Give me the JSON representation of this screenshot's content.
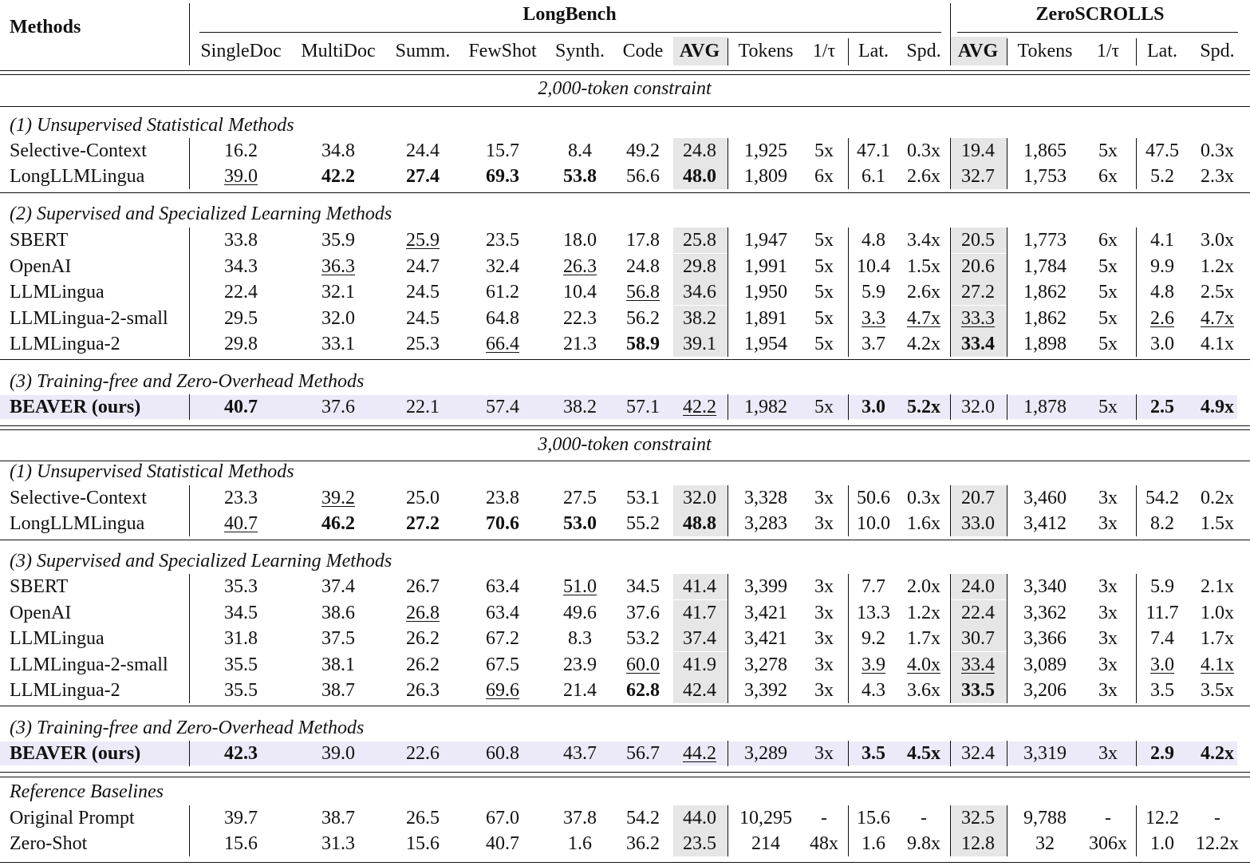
{
  "header": {
    "methods_label": "Methods",
    "groups": [
      "LongBench",
      "ZeroSCROLLS"
    ],
    "columns": [
      "SingleDoc",
      "MultiDoc",
      "Summ.",
      "FewShot",
      "Synth.",
      "Code",
      "AVG",
      "Tokens",
      "1/τ",
      "Lat.",
      "Spd.",
      "AVG",
      "Tokens",
      "1/τ",
      "Lat.",
      "Spd."
    ]
  },
  "sections": [
    {
      "constraint": "2,000-token constraint",
      "groups": [
        {
          "title": "(1) Unsupervised Statistical Methods",
          "rows": [
            {
              "method": "Selective-Context",
              "highlight": false,
              "bold_method": false,
              "values": [
                "16.2",
                "34.8",
                "24.4",
                "15.7",
                "8.4",
                "49.2",
                "24.8",
                "1,925",
                "5x",
                "47.1",
                "0.3x",
                "19.4",
                "1,865",
                "5x",
                "47.5",
                "0.3x"
              ],
              "bold": [],
              "underline": []
            },
            {
              "method": "LongLLMLingua",
              "highlight": false,
              "bold_method": false,
              "values": [
                "39.0",
                "42.2",
                "27.4",
                "69.3",
                "53.8",
                "56.6",
                "48.0",
                "1,809",
                "6x",
                "6.1",
                "2.6x",
                "32.7",
                "1,753",
                "6x",
                "5.2",
                "2.3x"
              ],
              "bold": [
                1,
                2,
                3,
                4,
                6
              ],
              "underline": [
                0
              ]
            }
          ]
        },
        {
          "title": "(2) Supervised and Specialized Learning Methods",
          "rows": [
            {
              "method": "SBERT",
              "highlight": false,
              "bold_method": false,
              "values": [
                "33.8",
                "35.9",
                "25.9",
                "23.5",
                "18.0",
                "17.8",
                "25.8",
                "1,947",
                "5x",
                "4.8",
                "3.4x",
                "20.5",
                "1,773",
                "6x",
                "4.1",
                "3.0x"
              ],
              "bold": [],
              "underline": [
                2
              ]
            },
            {
              "method": "OpenAI",
              "highlight": false,
              "bold_method": false,
              "values": [
                "34.3",
                "36.3",
                "24.7",
                "32.4",
                "26.3",
                "24.8",
                "29.8",
                "1,991",
                "5x",
                "10.4",
                "1.5x",
                "20.6",
                "1,784",
                "5x",
                "9.9",
                "1.2x"
              ],
              "bold": [],
              "underline": [
                1,
                4
              ]
            },
            {
              "method": "LLMLingua",
              "highlight": false,
              "bold_method": false,
              "values": [
                "22.4",
                "32.1",
                "24.5",
                "61.2",
                "10.4",
                "56.8",
                "34.6",
                "1,950",
                "5x",
                "5.9",
                "2.6x",
                "27.2",
                "1,862",
                "5x",
                "4.8",
                "2.5x"
              ],
              "bold": [],
              "underline": [
                5
              ]
            },
            {
              "method": "LLMLingua-2-small",
              "highlight": false,
              "bold_method": false,
              "values": [
                "29.5",
                "32.0",
                "24.5",
                "64.8",
                "22.3",
                "56.2",
                "38.2",
                "1,891",
                "5x",
                "3.3",
                "4.7x",
                "33.3",
                "1,862",
                "5x",
                "2.6",
                "4.7x"
              ],
              "bold": [],
              "underline": [
                9,
                10,
                11,
                14,
                15
              ]
            },
            {
              "method": "LLMLingua-2",
              "highlight": false,
              "bold_method": false,
              "values": [
                "29.8",
                "33.1",
                "25.3",
                "66.4",
                "21.3",
                "58.9",
                "39.1",
                "1,954",
                "5x",
                "3.7",
                "4.2x",
                "33.4",
                "1,898",
                "5x",
                "3.0",
                "4.1x"
              ],
              "bold": [
                5,
                11
              ],
              "underline": [
                3
              ]
            }
          ]
        },
        {
          "title": "(3) Training-free and Zero-Overhead Methods",
          "rows": [
            {
              "method": "BEAVER (ours)",
              "highlight": true,
              "bold_method": true,
              "values": [
                "40.7",
                "37.6",
                "22.1",
                "57.4",
                "38.2",
                "57.1",
                "42.2",
                "1,982",
                "5x",
                "3.0",
                "5.2x",
                "32.0",
                "1,878",
                "5x",
                "2.5",
                "4.9x"
              ],
              "bold": [
                0,
                9,
                10,
                14,
                15
              ],
              "underline": [
                6
              ]
            }
          ]
        }
      ]
    },
    {
      "constraint": "3,000-token constraint",
      "groups": [
        {
          "title": "(1) Unsupervised Statistical Methods",
          "rows": [
            {
              "method": "Selective-Context",
              "highlight": false,
              "bold_method": false,
              "values": [
                "23.3",
                "39.2",
                "25.0",
                "23.8",
                "27.5",
                "53.1",
                "32.0",
                "3,328",
                "3x",
                "50.6",
                "0.3x",
                "20.7",
                "3,460",
                "3x",
                "54.2",
                "0.2x"
              ],
              "bold": [],
              "underline": [
                1
              ]
            },
            {
              "method": "LongLLMLingua",
              "highlight": false,
              "bold_method": false,
              "values": [
                "40.7",
                "46.2",
                "27.2",
                "70.6",
                "53.0",
                "55.2",
                "48.8",
                "3,283",
                "3x",
                "10.0",
                "1.6x",
                "33.0",
                "3,412",
                "3x",
                "8.2",
                "1.5x"
              ],
              "bold": [
                1,
                2,
                3,
                4,
                6
              ],
              "underline": [
                0
              ]
            }
          ]
        },
        {
          "title": "(3) Supervised and Specialized Learning Methods",
          "rows": [
            {
              "method": "SBERT",
              "highlight": false,
              "bold_method": false,
              "values": [
                "35.3",
                "37.4",
                "26.7",
                "63.4",
                "51.0",
                "34.5",
                "41.4",
                "3,399",
                "3x",
                "7.7",
                "2.0x",
                "24.0",
                "3,340",
                "3x",
                "5.9",
                "2.1x"
              ],
              "bold": [],
              "underline": [
                4
              ]
            },
            {
              "method": "OpenAI",
              "highlight": false,
              "bold_method": false,
              "values": [
                "34.5",
                "38.6",
                "26.8",
                "63.4",
                "49.6",
                "37.6",
                "41.7",
                "3,421",
                "3x",
                "13.3",
                "1.2x",
                "22.4",
                "3,362",
                "3x",
                "11.7",
                "1.0x"
              ],
              "bold": [],
              "underline": [
                2
              ]
            },
            {
              "method": "LLMLingua",
              "highlight": false,
              "bold_method": false,
              "values": [
                "31.8",
                "37.5",
                "26.2",
                "67.2",
                "8.3",
                "53.2",
                "37.4",
                "3,421",
                "3x",
                "9.2",
                "1.7x",
                "30.7",
                "3,366",
                "3x",
                "7.4",
                "1.7x"
              ],
              "bold": [],
              "underline": []
            },
            {
              "method": "LLMLingua-2-small",
              "highlight": false,
              "bold_method": false,
              "values": [
                "35.5",
                "38.1",
                "26.2",
                "67.5",
                "23.9",
                "60.0",
                "41.9",
                "3,278",
                "3x",
                "3.9",
                "4.0x",
                "33.4",
                "3,089",
                "3x",
                "3.0",
                "4.1x"
              ],
              "bold": [],
              "underline": [
                5,
                9,
                10,
                11,
                14,
                15
              ]
            },
            {
              "method": "LLMLingua-2",
              "highlight": false,
              "bold_method": false,
              "values": [
                "35.5",
                "38.7",
                "26.3",
                "69.6",
                "21.4",
                "62.8",
                "42.4",
                "3,392",
                "3x",
                "4.3",
                "3.6x",
                "33.5",
                "3,206",
                "3x",
                "3.5",
                "3.5x"
              ],
              "bold": [
                5,
                11
              ],
              "underline": [
                3
              ]
            }
          ]
        },
        {
          "title": "(3) Training-free and Zero-Overhead Methods",
          "rows": [
            {
              "method": "BEAVER (ours)",
              "highlight": true,
              "bold_method": true,
              "values": [
                "42.3",
                "39.0",
                "22.6",
                "60.8",
                "43.7",
                "56.7",
                "44.2",
                "3,289",
                "3x",
                "3.5",
                "4.5x",
                "32.4",
                "3,319",
                "3x",
                "2.9",
                "4.2x"
              ],
              "bold": [
                0,
                9,
                10,
                14,
                15
              ],
              "underline": [
                6
              ]
            }
          ]
        }
      ]
    }
  ],
  "reference": {
    "title": "Reference Baselines",
    "rows": [
      {
        "method": "Original Prompt",
        "highlight": false,
        "bold_method": false,
        "values": [
          "39.7",
          "38.7",
          "26.5",
          "67.0",
          "37.8",
          "54.2",
          "44.0",
          "10,295",
          "-",
          "15.6",
          "-",
          "32.5",
          "9,788",
          "-",
          "12.2",
          "-"
        ],
        "bold": [],
        "underline": []
      },
      {
        "method": "Zero-Shot",
        "highlight": false,
        "bold_method": false,
        "values": [
          "15.6",
          "31.3",
          "15.6",
          "40.7",
          "1.6",
          "36.2",
          "23.5",
          "214",
          "48x",
          "1.6",
          "9.8x",
          "12.8",
          "32",
          "306x",
          "1.0",
          "12.2x"
        ],
        "bold": [],
        "underline": []
      }
    ]
  },
  "colors": {
    "avg_shade": "#e6e6e6",
    "beaver_band": "#eceaf8",
    "rule": "#111111"
  }
}
